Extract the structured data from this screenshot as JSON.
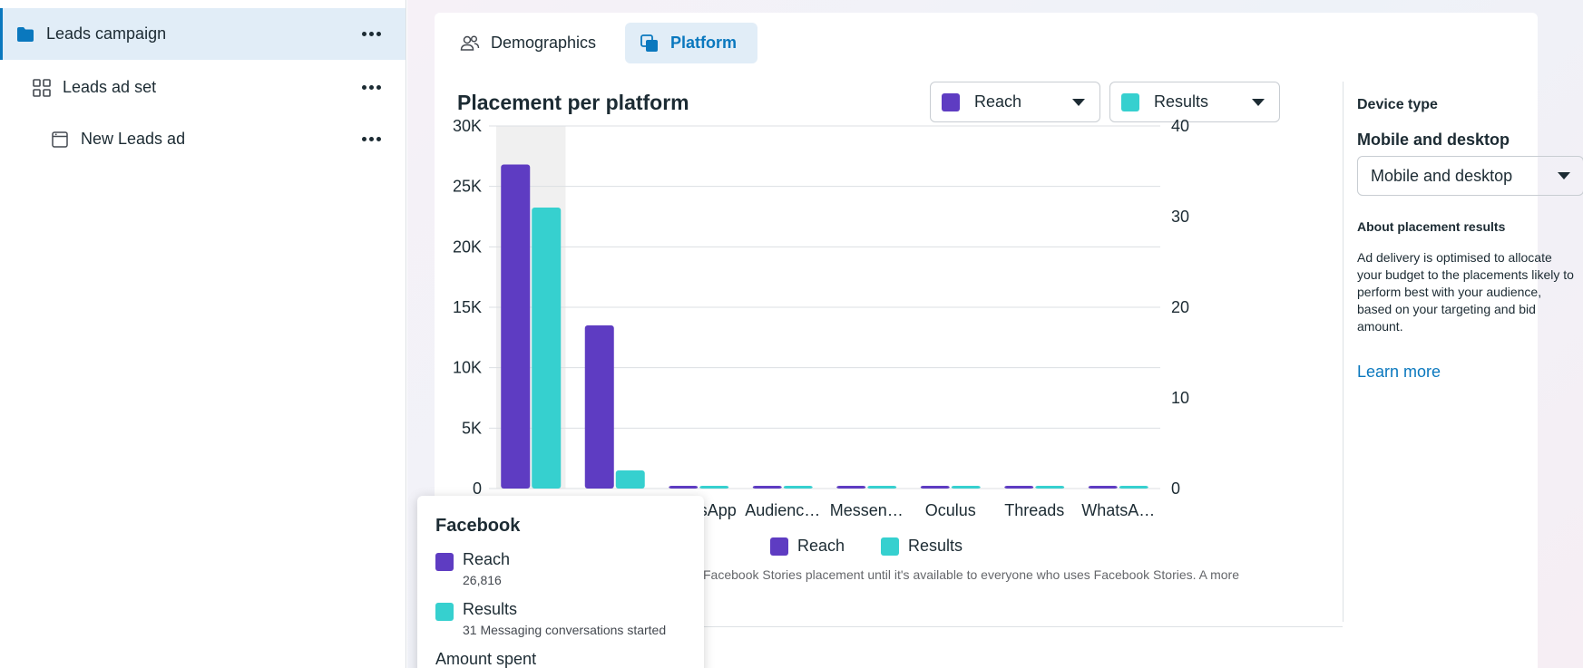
{
  "sidebar": {
    "items": [
      {
        "label": "Leads campaign",
        "icon": "folder-icon"
      },
      {
        "label": "Leads ad set",
        "icon": "grid-icon"
      },
      {
        "label": "New Leads ad",
        "icon": "ad-icon"
      }
    ]
  },
  "tabs": [
    {
      "label": "Demographics",
      "icon": "people-icon",
      "active": false
    },
    {
      "label": "Platform",
      "icon": "platform-icon",
      "active": true
    }
  ],
  "chart_title": "Placement per platform",
  "metric_selects": [
    {
      "label": "Reach",
      "color": "#5e3cc2"
    },
    {
      "label": "Results",
      "color": "#36d0cf"
    }
  ],
  "chart_data": {
    "type": "bar",
    "categories": [
      "",
      "",
      "WhatsApp",
      "Audienc…",
      "Messen…",
      "Oculus",
      "Threads",
      "WhatsA…"
    ],
    "series": [
      {
        "name": "Reach",
        "axis": "left",
        "color": "#5e3cc2",
        "values": [
          26816,
          13500,
          0,
          0,
          0,
          0,
          0,
          0
        ]
      },
      {
        "name": "Results",
        "axis": "right",
        "color": "#36d0cf",
        "values": [
          31,
          2,
          0,
          0,
          0,
          0,
          0,
          0
        ]
      }
    ],
    "y_left": {
      "ylim": [
        0,
        30000
      ],
      "ticks": [
        0,
        5000,
        10000,
        15000,
        20000,
        25000,
        30000
      ],
      "tick_labels": [
        "0",
        "5K",
        "10K",
        "15K",
        "20K",
        "25K",
        "30K"
      ]
    },
    "y_right": {
      "ylim": [
        0,
        40
      ],
      "ticks": [
        0,
        10,
        20,
        30,
        40
      ],
      "tick_labels": [
        "0",
        "10",
        "20",
        "30",
        "40"
      ]
    },
    "highlighted_category": 0,
    "grid": true,
    "legend": "bottom-center"
  },
  "legend": [
    {
      "label": "Reach",
      "color": "#5e3cc2"
    },
    {
      "label": "Results",
      "color": "#36d0cf"
    }
  ],
  "footnote": "Facebook Stories placement until it's available to everyone who uses Facebook Stories. A more",
  "right_panel": {
    "heading": "Device type",
    "select_label": "Mobile and desktop",
    "select_value": "Mobile and desktop",
    "about_heading": "About placement results",
    "about_text": "Ad delivery is optimised to allocate your budget to the placements likely to perform best with your audience, based on your targeting and bid amount.",
    "learn_more": "Learn more"
  },
  "tooltip": {
    "title": "Facebook",
    "rows": [
      {
        "name": "Reach",
        "value": "26,816",
        "color": "#5e3cc2"
      },
      {
        "name": "Results",
        "value": "31 Messaging conversations started",
        "color": "#36d0cf"
      }
    ],
    "amount_label": "Amount spent"
  }
}
